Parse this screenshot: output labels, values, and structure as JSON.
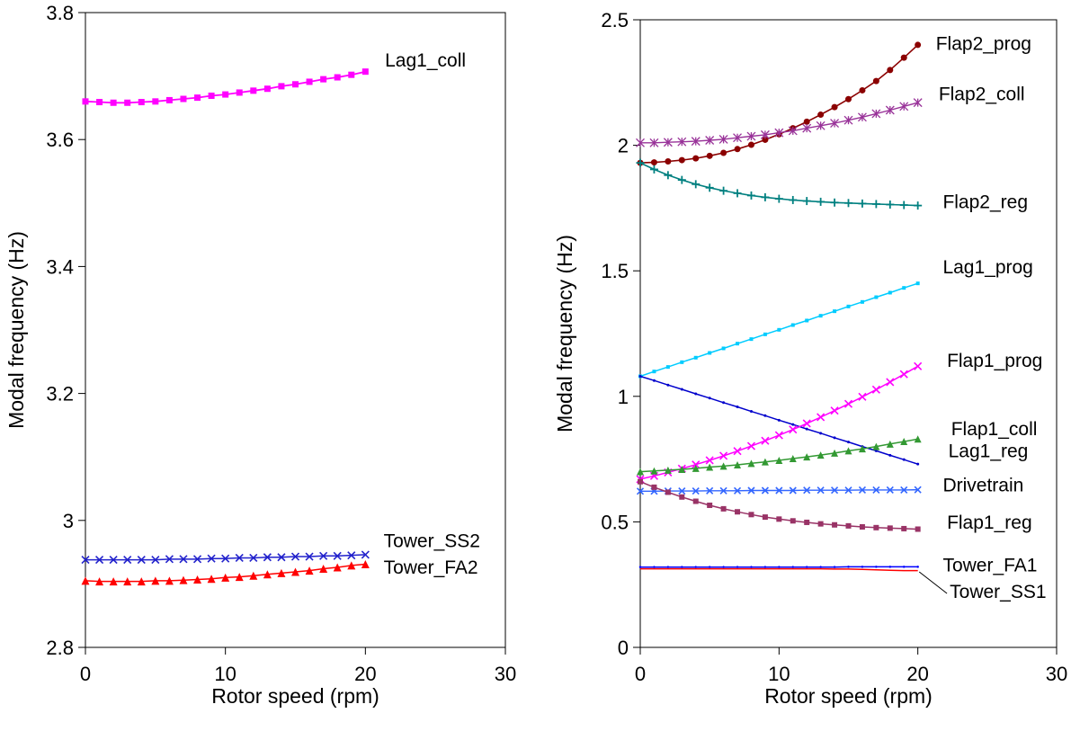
{
  "page": {
    "background": "#ffffff"
  },
  "chart_data": [
    {
      "id": "left",
      "type": "line",
      "title": "",
      "xlabel": "Rotor speed (rpm)",
      "ylabel": "Modal frequency (Hz)",
      "xlim": [
        0,
        30
      ],
      "ylim": [
        2.8,
        3.8
      ],
      "xticks": [
        0,
        10,
        20,
        30
      ],
      "xtick_labels": [
        "0",
        "10",
        "20",
        "30"
      ],
      "yticks": [
        2.8,
        3.0,
        3.2,
        3.4,
        3.6,
        3.8
      ],
      "ytick_labels": [
        "2.8",
        "3",
        "3.2",
        "3.4",
        "3.6",
        "3.8"
      ],
      "grid": false,
      "legend": "inline-labels",
      "x": [
        0,
        1,
        2,
        3,
        4,
        5,
        6,
        7,
        8,
        9,
        10,
        11,
        12,
        13,
        14,
        15,
        16,
        17,
        18,
        19,
        20
      ],
      "series": [
        {
          "name": "Lag1_coll",
          "color": "#FF00FF",
          "marker": "square",
          "marker_size": 7,
          "line_width": 1.8,
          "values": [
            3.66,
            3.659,
            3.658,
            3.658,
            3.659,
            3.66,
            3.662,
            3.664,
            3.666,
            3.669,
            3.671,
            3.674,
            3.677,
            3.68,
            3.684,
            3.687,
            3.691,
            3.695,
            3.698,
            3.702,
            3.707
          ],
          "label_x": 21.4,
          "label_y": 3.715
        },
        {
          "name": "Tower_SS2",
          "color": "#2222CC",
          "marker": "x",
          "marker_size": 8,
          "line_width": 1.5,
          "values": [
            2.938,
            2.938,
            2.938,
            2.938,
            2.938,
            2.938,
            2.939,
            2.939,
            2.939,
            2.94,
            2.94,
            2.941,
            2.941,
            2.942,
            2.942,
            2.943,
            2.943,
            2.944,
            2.944,
            2.945,
            2.946
          ],
          "label_x": 21.3,
          "label_y": 2.958
        },
        {
          "name": "Tower_FA2",
          "color": "#FF0000",
          "marker": "triangle",
          "marker_size": 9,
          "line_width": 1.5,
          "values": [
            2.905,
            2.904,
            2.904,
            2.904,
            2.904,
            2.905,
            2.905,
            2.906,
            2.907,
            2.908,
            2.91,
            2.911,
            2.913,
            2.915,
            2.917,
            2.919,
            2.921,
            2.924,
            2.926,
            2.929,
            2.931
          ],
          "label_x": 21.3,
          "label_y": 2.916
        }
      ]
    },
    {
      "id": "right",
      "type": "line",
      "title": "",
      "xlabel": "Rotor speed (rpm)",
      "ylabel": "Modal frequency (Hz)",
      "xlim": [
        0,
        30
      ],
      "ylim": [
        0,
        2.5
      ],
      "xticks": [
        0,
        10,
        20,
        30
      ],
      "xtick_labels": [
        "0",
        "10",
        "20",
        "30"
      ],
      "yticks": [
        0,
        0.5,
        1.0,
        1.5,
        2.0,
        2.5
      ],
      "ytick_labels": [
        "0",
        "0.5",
        "1",
        "1.5",
        "2",
        "2.5"
      ],
      "grid": false,
      "legend": "inline-labels",
      "x": [
        0,
        1,
        2,
        3,
        4,
        5,
        6,
        7,
        8,
        9,
        10,
        11,
        12,
        13,
        14,
        15,
        16,
        17,
        18,
        19,
        20
      ],
      "series": [
        {
          "name": "Flap2_prog",
          "color": "#8B0000",
          "marker": "circle",
          "marker_size": 7,
          "line_width": 1.6,
          "values": [
            1.93,
            1.932,
            1.936,
            1.941,
            1.948,
            1.958,
            1.97,
            1.985,
            2.002,
            2.022,
            2.044,
            2.068,
            2.094,
            2.122,
            2.152,
            2.184,
            2.219,
            2.256,
            2.3,
            2.349,
            2.4
          ],
          "label_x": 21.3,
          "label_y": 2.38
        },
        {
          "name": "Flap2_coll",
          "color": "#993399",
          "marker": "asterisk",
          "marker_size": 9,
          "line_width": 1.4,
          "values": [
            2.01,
            2.01,
            2.012,
            2.014,
            2.016,
            2.02,
            2.024,
            2.03,
            2.036,
            2.042,
            2.05,
            2.058,
            2.068,
            2.078,
            2.088,
            2.1,
            2.112,
            2.126,
            2.14,
            2.155,
            2.17
          ],
          "label_x": 21.5,
          "label_y": 2.18
        },
        {
          "name": "Flap2_reg",
          "color": "#008080",
          "marker": "plus",
          "marker_size": 9,
          "line_width": 1.6,
          "values": [
            1.93,
            1.904,
            1.881,
            1.862,
            1.845,
            1.831,
            1.819,
            1.809,
            1.8,
            1.793,
            1.787,
            1.782,
            1.778,
            1.775,
            1.772,
            1.77,
            1.768,
            1.766,
            1.764,
            1.762,
            1.76
          ],
          "label_x": 21.8,
          "label_y": 1.75
        },
        {
          "name": "Lag1_prog",
          "color": "#00CCFF",
          "marker": "square",
          "marker_size": 4,
          "line_width": 1.5,
          "values": [
            1.08,
            1.099,
            1.117,
            1.136,
            1.154,
            1.173,
            1.191,
            1.21,
            1.228,
            1.247,
            1.265,
            1.284,
            1.302,
            1.321,
            1.339,
            1.358,
            1.376,
            1.395,
            1.413,
            1.432,
            1.45
          ],
          "label_x": 21.8,
          "label_y": 1.49
        },
        {
          "name": "Lag1_reg",
          "color": "#0000CC",
          "marker": "dot",
          "marker_size": 3,
          "line_width": 1.5,
          "values": [
            1.08,
            1.063,
            1.045,
            1.028,
            1.01,
            0.993,
            0.975,
            0.958,
            0.94,
            0.923,
            0.905,
            0.888,
            0.87,
            0.853,
            0.835,
            0.818,
            0.8,
            0.783,
            0.765,
            0.748,
            0.73
          ],
          "label_x": 22.2,
          "label_y": 0.757
        },
        {
          "name": "Flap1_prog",
          "color": "#FF00FF",
          "marker": "x",
          "marker_size": 8,
          "line_width": 1.5,
          "values": [
            0.67,
            0.683,
            0.697,
            0.712,
            0.728,
            0.745,
            0.763,
            0.782,
            0.802,
            0.823,
            0.845,
            0.868,
            0.892,
            0.917,
            0.943,
            0.97,
            0.998,
            1.027,
            1.057,
            1.088,
            1.12
          ],
          "label_x": 22.1,
          "label_y": 1.118
        },
        {
          "name": "Flap1_coll",
          "color": "#339933",
          "marker": "triangle",
          "marker_size": 8,
          "line_width": 1.5,
          "values": [
            0.7,
            0.703,
            0.706,
            0.709,
            0.713,
            0.718,
            0.722,
            0.727,
            0.733,
            0.739,
            0.745,
            0.752,
            0.759,
            0.766,
            0.774,
            0.783,
            0.791,
            0.8,
            0.81,
            0.82,
            0.83
          ],
          "label_x": 22.4,
          "label_y": 0.845
        },
        {
          "name": "Drivetrain",
          "color": "#3366FF",
          "marker": "x",
          "marker_size": 7,
          "line_width": 1.4,
          "values": [
            0.622,
            0.622,
            0.623,
            0.623,
            0.623,
            0.624,
            0.624,
            0.624,
            0.625,
            0.625,
            0.625,
            0.625,
            0.626,
            0.626,
            0.626,
            0.626,
            0.627,
            0.627,
            0.627,
            0.627,
            0.628
          ],
          "label_x": 21.8,
          "label_y": 0.622
        },
        {
          "name": "Flap1_reg",
          "color": "#993366",
          "marker": "square",
          "marker_size": 6,
          "line_width": 1.5,
          "values": [
            0.66,
            0.638,
            0.618,
            0.599,
            0.582,
            0.566,
            0.552,
            0.54,
            0.529,
            0.519,
            0.511,
            0.504,
            0.498,
            0.492,
            0.488,
            0.484,
            0.48,
            0.477,
            0.475,
            0.473,
            0.471
          ],
          "label_x": 22.1,
          "label_y": 0.473
        },
        {
          "name": "Tower_FA1",
          "color": "#0000FF",
          "marker": "dot",
          "marker_size": 2.5,
          "line_width": 1.5,
          "values": [
            0.32,
            0.32,
            0.32,
            0.32,
            0.32,
            0.32,
            0.32,
            0.32,
            0.32,
            0.32,
            0.32,
            0.32,
            0.32,
            0.32,
            0.32,
            0.321,
            0.321,
            0.321,
            0.321,
            0.321,
            0.321
          ],
          "label_x": 21.8,
          "label_y": 0.302
        },
        {
          "name": "Tower_SS1",
          "color": "#FF0000",
          "marker": "none",
          "marker_size": 0,
          "line_width": 1.5,
          "values": [
            0.313,
            0.313,
            0.313,
            0.313,
            0.313,
            0.313,
            0.313,
            0.313,
            0.313,
            0.313,
            0.313,
            0.313,
            0.313,
            0.313,
            0.312,
            0.312,
            0.311,
            0.309,
            0.307,
            0.306,
            0.306
          ],
          "label_x": 22.3,
          "label_y": 0.197,
          "leader": {
            "x1": 20.1,
            "y1": 0.301,
            "x2": 22.1,
            "y2": 0.215
          }
        }
      ]
    }
  ]
}
